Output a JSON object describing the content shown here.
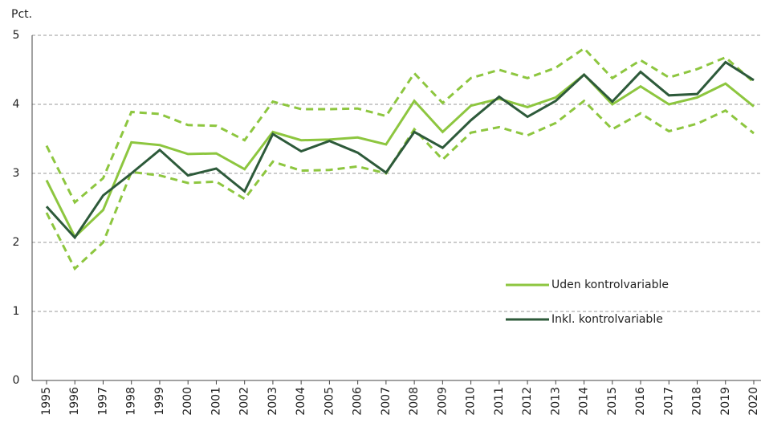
{
  "chart_data": {
    "type": "line",
    "ylabel": "Pct.",
    "categories": [
      "1995",
      "1996",
      "1997",
      "1998",
      "1999",
      "2000",
      "2001",
      "2002",
      "2003",
      "2004",
      "2005",
      "2006",
      "2007",
      "2008",
      "2009",
      "2010",
      "2011",
      "2012",
      "2013",
      "2014",
      "2015",
      "2016",
      "2017",
      "2018",
      "2019",
      "2020"
    ],
    "series": [
      {
        "color": "#8dc63f",
        "dashed": true,
        "values": [
          3.4,
          2.58,
          2.93,
          3.89,
          3.86,
          3.7,
          3.69,
          3.48,
          4.04,
          3.93,
          3.93,
          3.94,
          3.83,
          4.45,
          4.02,
          4.38,
          4.5,
          4.38,
          4.53,
          4.81,
          4.38,
          4.64,
          4.39,
          4.51,
          4.68,
          4.32
        ]
      },
      {
        "color": "#8dc63f",
        "dashed": true,
        "values": [
          2.43,
          1.62,
          2.0,
          3.02,
          2.97,
          2.86,
          2.88,
          2.63,
          3.17,
          3.04,
          3.05,
          3.1,
          3.0,
          3.64,
          3.2,
          3.59,
          3.67,
          3.55,
          3.73,
          4.05,
          3.64,
          3.87,
          3.61,
          3.72,
          3.91,
          3.58
        ]
      },
      {
        "name": "Uden kontrolvariable",
        "color": "#8dc63f",
        "values": [
          2.9,
          2.08,
          2.47,
          3.45,
          3.41,
          3.28,
          3.29,
          3.06,
          3.6,
          3.48,
          3.49,
          3.52,
          3.42,
          4.05,
          3.6,
          3.98,
          4.08,
          3.96,
          4.1,
          4.43,
          4.0,
          4.26,
          4.0,
          4.1,
          4.3,
          3.97
        ]
      },
      {
        "name": "Inkl. kontrolvariable",
        "color": "#2d5a3a",
        "values": [
          2.52,
          2.07,
          2.68,
          3.0,
          3.34,
          2.97,
          3.07,
          2.74,
          3.57,
          3.32,
          3.47,
          3.3,
          3.01,
          3.6,
          3.37,
          3.77,
          4.11,
          3.82,
          4.05,
          4.43,
          4.04,
          4.47,
          4.13,
          4.15,
          4.61,
          4.35
        ]
      }
    ],
    "ylim": [
      0,
      5
    ],
    "yticks": [
      0,
      1,
      2,
      3,
      4,
      5
    ],
    "grid": true,
    "legend": "center right"
  }
}
